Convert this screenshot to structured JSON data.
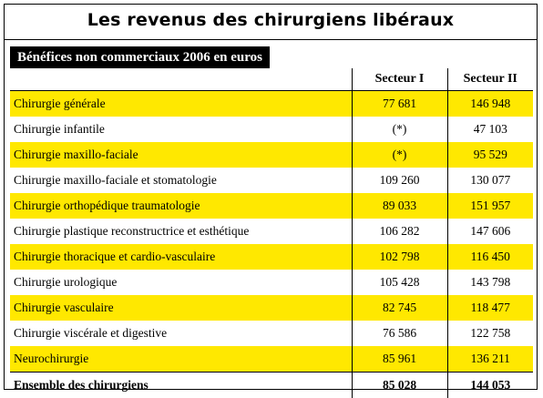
{
  "title": "Les revenus des chirurgiens libéraux",
  "subtitle": "Bénéfices non commerciaux 2006 en euros",
  "table": {
    "headers": [
      "",
      "Secteur I",
      "Secteur II"
    ],
    "rows": [
      {
        "label": "Chirurgie générale",
        "s1": "77 681",
        "s2": "146 948"
      },
      {
        "label": "Chirurgie infantile",
        "s1": "(*)",
        "s2": "47 103"
      },
      {
        "label": "Chirurgie maxillo-faciale",
        "s1": "(*)",
        "s2": "95 529"
      },
      {
        "label": "Chirurgie maxillo-faciale et stomatologie",
        "s1": "109 260",
        "s2": "130 077"
      },
      {
        "label": "Chirurgie orthopédique traumatologie",
        "s1": "89 033",
        "s2": "151 957"
      },
      {
        "label": "Chirurgie plastique reconstructrice et esthétique",
        "s1": "106 282",
        "s2": "147 606"
      },
      {
        "label": "Chirurgie thoracique et cardio-vasculaire",
        "s1": "102 798",
        "s2": "116 450"
      },
      {
        "label": "Chirurgie urologique",
        "s1": "105 428",
        "s2": "143 798"
      },
      {
        "label": "Chirurgie vasculaire",
        "s1": "82 745",
        "s2": "118 477"
      },
      {
        "label": "Chirurgie viscérale et digestive",
        "s1": "76 586",
        "s2": "122 758"
      },
      {
        "label": "Neurochirurgie",
        "s1": "85 961",
        "s2": "136 211"
      }
    ],
    "total": {
      "label": "Ensemble des chirurgiens",
      "s1": "85 028",
      "s2": "144 053"
    }
  },
  "colors": {
    "highlight_row": "#ffe800",
    "subtitle_bg": "#000000"
  }
}
